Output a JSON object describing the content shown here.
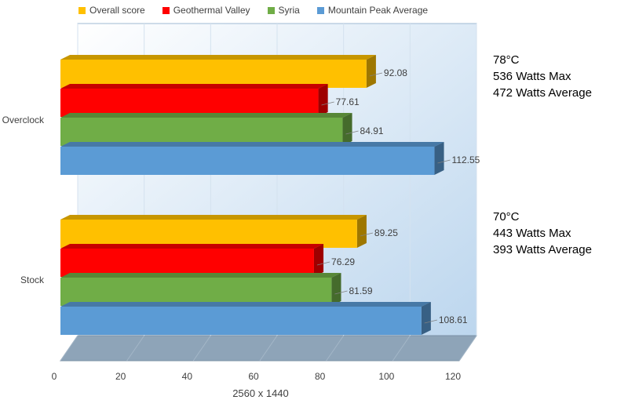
{
  "chart_data": {
    "type": "bar",
    "orientation": "horizontal",
    "categories": [
      "Overclock",
      "Stock"
    ],
    "series": [
      {
        "name": "Overall score",
        "color": "#FFC000",
        "values": [
          92.08,
          89.25
        ]
      },
      {
        "name": "Geothermal Valley",
        "color": "#FF0000",
        "values": [
          77.61,
          76.29
        ]
      },
      {
        "name": "Syria",
        "color": "#70AD47",
        "values": [
          84.91,
          81.59
        ]
      },
      {
        "name": "Mountain Peak Average",
        "color": "#5B9BD5",
        "values": [
          112.55,
          108.61
        ]
      }
    ],
    "xlabel": "2560 x 1440",
    "xlim": [
      0,
      120
    ],
    "xticks": [
      "0",
      "20",
      "40",
      "60",
      "80",
      "100",
      "120"
    ],
    "legend_position": "top",
    "grid": true,
    "style": "3d"
  },
  "annotations": [
    {
      "category": "Overclock",
      "lines": [
        "78°C",
        "536 Watts Max",
        "472 Watts Average"
      ]
    },
    {
      "category": "Stock",
      "lines": [
        "70°C",
        "443 Watts Max",
        "393 Watts Average"
      ]
    }
  ]
}
